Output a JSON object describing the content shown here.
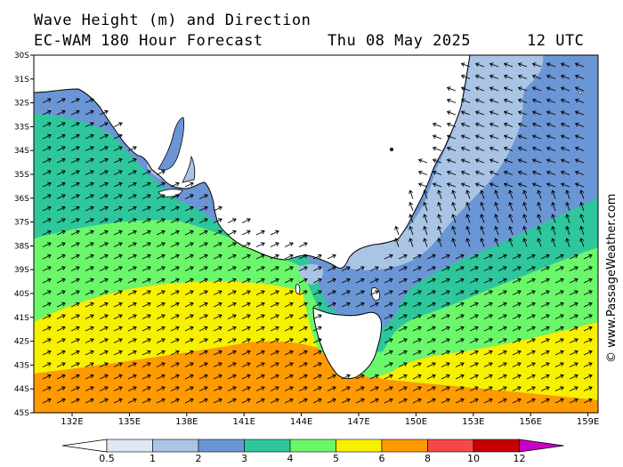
{
  "header": {
    "title": "Wave Height (m) and Direction",
    "model": "EC-WAM 180 Hour Forecast",
    "date": "Thu 08 May 2025",
    "time": "12 UTC"
  },
  "latitude_labels": [
    "30S",
    "31S",
    "32S",
    "33S",
    "34S",
    "35S",
    "36S",
    "37S",
    "38S",
    "39S",
    "40S",
    "41S",
    "42S",
    "43S",
    "44S",
    "45S"
  ],
  "longitude_labels": [
    "132E",
    "135E",
    "138E",
    "141E",
    "144E",
    "147E",
    "150E",
    "153E",
    "156E",
    "159E"
  ],
  "colorbar": {
    "labels": [
      "0.5",
      "1",
      "2",
      "3",
      "4",
      "5",
      "6",
      "8",
      "10",
      "12"
    ],
    "colors": [
      "#dde8f5",
      "#a9c4e4",
      "#6b96d6",
      "#2ec79b",
      "#6af76a",
      "#f7f000",
      "#ff9a00",
      "#f74848",
      "#c80000",
      "#c800c8"
    ]
  },
  "credit": "© www.PassageWeather.com",
  "map_data": {
    "region": "SE Australia / Tasman Sea",
    "lat_range": [
      "30S",
      "45S"
    ],
    "lon_range": [
      "130.5E",
      "159.5E"
    ],
    "wave_height_bands_m": [
      "1-2",
      "2-3",
      "3-4",
      "4-5",
      "5-6",
      "6-8"
    ]
  }
}
